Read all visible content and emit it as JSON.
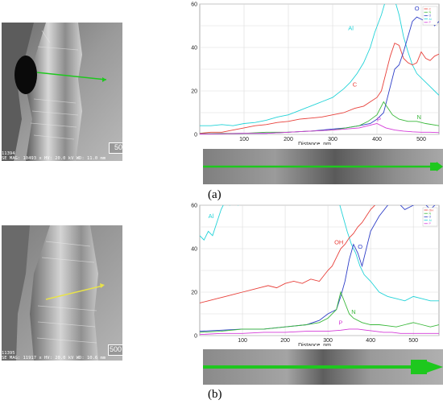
{
  "panels": [
    {
      "label": "(a)",
      "sem": {
        "footer_line1": "11394",
        "footer_line2": "SE  MAG: 10493 x  HV: 20.0 kV  WD: 11.0 mm",
        "scale_bar": "500 nm",
        "scan_line_color": "#1ec81e"
      },
      "legend_entries": [
        "C",
        "N",
        "O",
        "Al",
        "P"
      ]
    },
    {
      "label": "(b)",
      "sem": {
        "footer_line1": "11395",
        "footer_line2": "SE  MAG: 11917 x  HV: 20.0 kV  WD: 10.6 mm",
        "scale_bar": "500 nm",
        "scan_line_color": "#e8e24a"
      },
      "legend_entries": [
        "OH",
        "N",
        "O",
        "Al",
        "P"
      ]
    }
  ],
  "chart_data": [
    {
      "type": "line",
      "xlabel": "Distance, nm",
      "ylabel": "",
      "xlim": [
        0,
        540
      ],
      "ylim": [
        0,
        60
      ],
      "xticks": [
        100,
        200,
        300,
        400,
        500
      ],
      "yticks": [
        0,
        20,
        40,
        60
      ],
      "grid": true,
      "legend": "top-right",
      "series": [
        {
          "name": "Al",
          "color": "#22d3d8",
          "x": [
            0,
            25,
            50,
            75,
            100,
            125,
            150,
            175,
            200,
            225,
            250,
            275,
            300,
            325,
            340,
            355,
            370,
            385,
            395,
            410,
            420,
            430,
            440,
            450,
            460,
            470,
            480,
            490,
            500,
            510,
            520,
            530,
            540
          ],
          "y": [
            4,
            4,
            4.5,
            4,
            5,
            5.5,
            6.5,
            8,
            9,
            11,
            13,
            15,
            17,
            21,
            24,
            28,
            33,
            40,
            47,
            55,
            62,
            62,
            62,
            55,
            45,
            38,
            32,
            28,
            26,
            24,
            22,
            20,
            18
          ]
        },
        {
          "name": "C",
          "color": "#e8403a",
          "x": [
            0,
            25,
            50,
            75,
            100,
            125,
            150,
            175,
            200,
            225,
            250,
            275,
            300,
            325,
            350,
            370,
            385,
            400,
            410,
            420,
            430,
            440,
            450,
            460,
            470,
            480,
            490,
            500,
            510,
            520,
            530,
            540
          ],
          "y": [
            0.5,
            1,
            1,
            2,
            3,
            4,
            4.5,
            5.5,
            6,
            7,
            7.5,
            8,
            9,
            10,
            12,
            13,
            15,
            17,
            20,
            28,
            36,
            42,
            41,
            35,
            33,
            32,
            33,
            38,
            35,
            34,
            36,
            37
          ]
        },
        {
          "name": "O",
          "color": "#2f3fc8",
          "x": [
            0,
            50,
            100,
            150,
            200,
            250,
            300,
            330,
            360,
            385,
            400,
            415,
            425,
            440,
            450,
            460,
            470,
            480,
            490,
            500,
            510,
            520,
            530,
            540
          ],
          "y": [
            0.3,
            0.3,
            0.5,
            0.5,
            1,
            1.5,
            2.5,
            3,
            4,
            5,
            7,
            10,
            18,
            30,
            32,
            38,
            45,
            52,
            54,
            53,
            52,
            54,
            50,
            52
          ]
        },
        {
          "name": "N",
          "color": "#39b83a",
          "x": [
            0,
            50,
            100,
            150,
            200,
            250,
            300,
            330,
            360,
            380,
            400,
            415,
            425,
            435,
            450,
            470,
            490,
            510,
            540
          ],
          "y": [
            0.3,
            0.5,
            0.5,
            1,
            1,
            1.5,
            2,
            3,
            4,
            6,
            9,
            15,
            12,
            9,
            7,
            6,
            6,
            5,
            4
          ]
        },
        {
          "name": "P",
          "color": "#d43ad8",
          "x": [
            0,
            50,
            100,
            150,
            200,
            250,
            300,
            330,
            360,
            380,
            400,
            420,
            440,
            460,
            480,
            500,
            520,
            540
          ],
          "y": [
            0.2,
            0.3,
            0.5,
            0.5,
            1,
            1.5,
            2,
            2.5,
            3,
            4,
            5,
            3,
            2,
            1.5,
            1.2,
            1,
            1,
            0.8
          ]
        }
      ]
    },
    {
      "type": "line",
      "xlabel": "Distance, nm",
      "ylabel": "",
      "xlim": [
        0,
        560
      ],
      "ylim": [
        0,
        60
      ],
      "xticks": [
        100,
        200,
        300,
        400,
        500
      ],
      "yticks": [
        0,
        20,
        40,
        60
      ],
      "grid": true,
      "legend": "top-right",
      "series": [
        {
          "name": "Al",
          "color": "#22d3d8",
          "x": [
            0,
            10,
            20,
            30,
            40,
            50,
            60,
            70,
            80,
            90,
            100,
            110,
            120,
            130,
            140,
            150,
            160,
            170,
            180,
            200,
            230,
            260,
            290,
            310,
            325,
            335,
            345,
            355,
            365,
            375,
            385,
            400,
            420,
            440,
            460,
            480,
            500,
            520,
            540,
            560
          ],
          "y": [
            46,
            44,
            48,
            46,
            52,
            58,
            62,
            60,
            62,
            60,
            62,
            62,
            62,
            62,
            62,
            62,
            62,
            62,
            62,
            62,
            62,
            62,
            62,
            62,
            62,
            55,
            48,
            42,
            38,
            32,
            28,
            25,
            20,
            18,
            17,
            16,
            18,
            17,
            16,
            16
          ]
        },
        {
          "name": "OH",
          "color": "#e8403a",
          "x": [
            0,
            20,
            40,
            60,
            80,
            100,
            120,
            140,
            160,
            180,
            200,
            220,
            240,
            260,
            280,
            300,
            310,
            320,
            330,
            340,
            350,
            360,
            370,
            380,
            390,
            400,
            420,
            440,
            460,
            480,
            500,
            520,
            540,
            560
          ],
          "y": [
            15,
            16,
            17,
            18,
            19,
            20,
            21,
            22,
            23,
            22,
            24,
            25,
            24,
            26,
            25,
            30,
            32,
            36,
            40,
            42,
            45,
            47,
            50,
            52,
            55,
            58,
            62,
            62,
            62,
            62,
            62,
            62,
            62,
            62
          ]
        },
        {
          "name": "O",
          "color": "#2f3fc8",
          "x": [
            0,
            50,
            100,
            150,
            200,
            250,
            280,
            300,
            320,
            330,
            340,
            350,
            360,
            370,
            380,
            390,
            400,
            420,
            440,
            460,
            480,
            500,
            520,
            540,
            560
          ],
          "y": [
            2,
            2.5,
            3,
            3,
            4,
            5,
            7,
            10,
            12,
            18,
            25,
            35,
            42,
            38,
            32,
            40,
            48,
            55,
            60,
            62,
            58,
            60,
            62,
            58,
            62
          ]
        },
        {
          "name": "N",
          "color": "#39b83a",
          "x": [
            0,
            50,
            100,
            150,
            200,
            250,
            280,
            300,
            320,
            330,
            340,
            350,
            360,
            380,
            400,
            420,
            440,
            460,
            480,
            500,
            520,
            540,
            560
          ],
          "y": [
            1.5,
            2,
            3,
            3,
            4,
            5,
            6,
            8,
            12,
            20,
            15,
            10,
            8,
            6,
            5,
            5,
            4.5,
            4,
            5,
            6,
            5,
            4,
            5
          ]
        },
        {
          "name": "P",
          "color": "#d43ad8",
          "x": [
            0,
            50,
            100,
            150,
            200,
            250,
            300,
            330,
            350,
            370,
            390,
            410,
            430,
            450,
            470,
            490,
            510,
            530,
            560
          ],
          "y": [
            0.5,
            1,
            1,
            1.5,
            1.5,
            2,
            2,
            2.5,
            3,
            3,
            2.5,
            2,
            1.5,
            1.5,
            1,
            1,
            1,
            1,
            1
          ]
        }
      ]
    }
  ]
}
